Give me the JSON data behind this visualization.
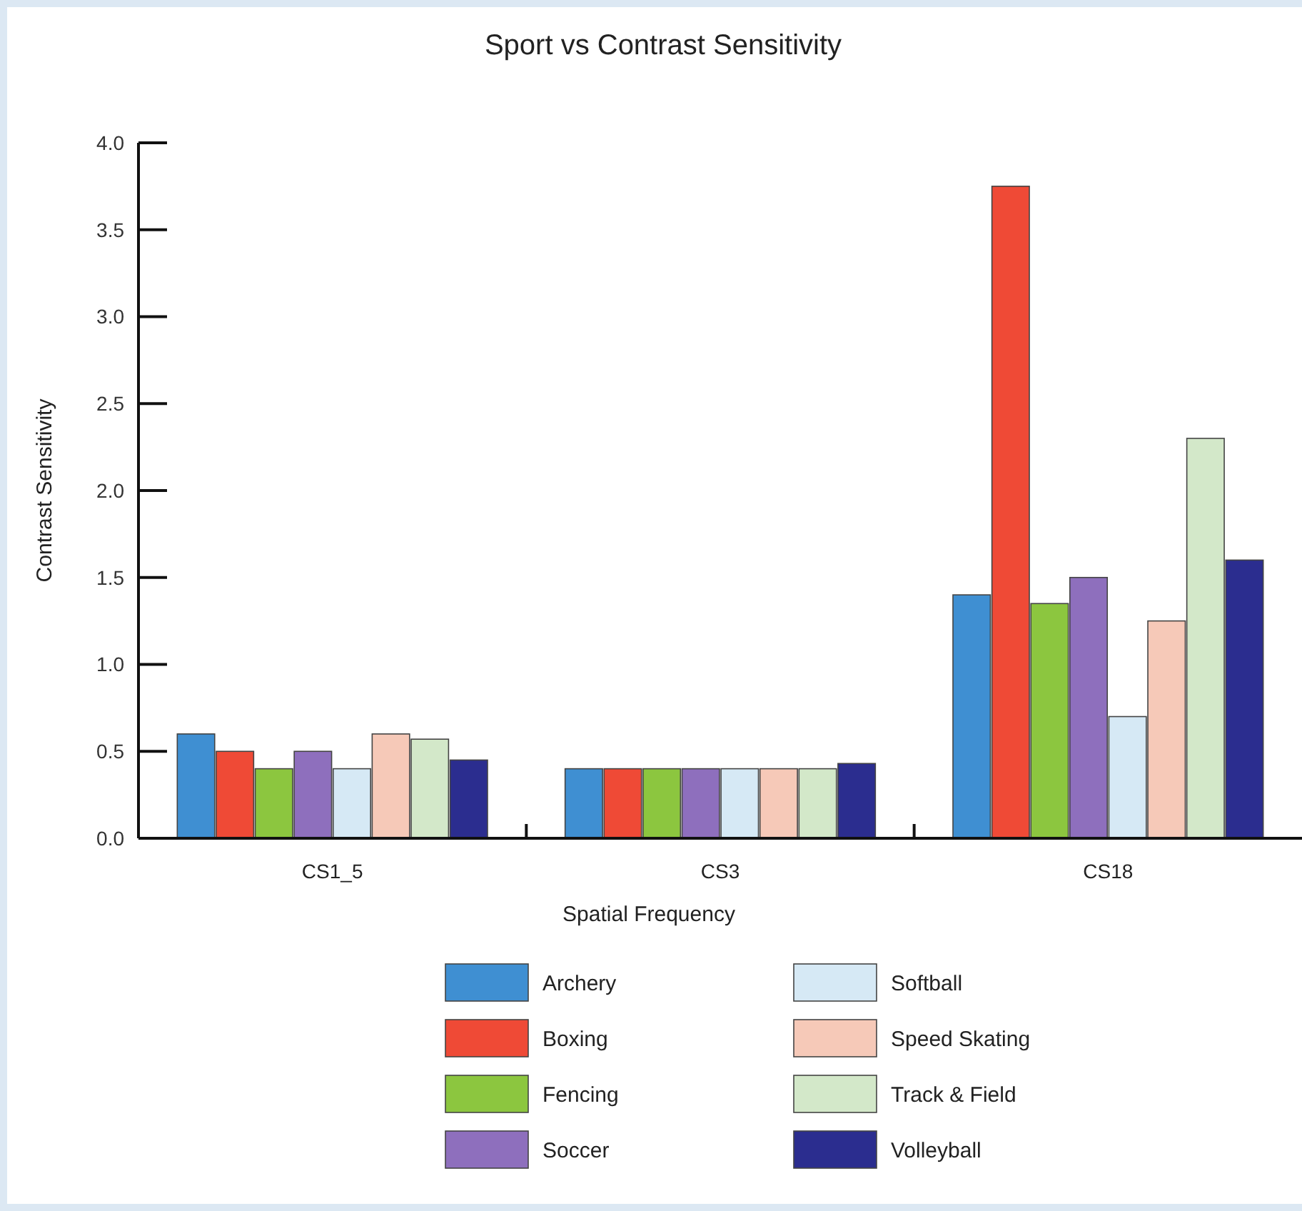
{
  "chart_data": {
    "type": "bar",
    "title": "Sport vs Contrast Sensitivity",
    "xlabel": "Spatial Frequency",
    "ylabel": "Contrast Sensitivity",
    "categories": [
      "CS1_5",
      "CS3",
      "CS18"
    ],
    "series": [
      {
        "name": "Archery",
        "color": "#3f8fd2",
        "values": [
          0.6,
          0.4,
          1.4
        ]
      },
      {
        "name": "Boxing",
        "color": "#ef4a36",
        "values": [
          0.5,
          0.4,
          3.75
        ]
      },
      {
        "name": "Fencing",
        "color": "#8cc63f",
        "values": [
          0.4,
          0.4,
          1.35
        ]
      },
      {
        "name": "Soccer",
        "color": "#8e6fbd",
        "values": [
          0.5,
          0.4,
          1.5
        ]
      },
      {
        "name": "Softball",
        "color": "#d6e9f5",
        "values": [
          0.4,
          0.4,
          0.7
        ]
      },
      {
        "name": "Speed Skating",
        "color": "#f6c9b8",
        "values": [
          0.6,
          0.4,
          1.25
        ]
      },
      {
        "name": "Track & Field",
        "color": "#d3e8c9",
        "values": [
          0.57,
          0.4,
          2.3
        ]
      },
      {
        "name": "Volleyball",
        "color": "#2b2d8f",
        "values": [
          0.45,
          0.43,
          1.6
        ]
      }
    ],
    "ylim": [
      0,
      4
    ],
    "yticks": [
      {
        "value": 0,
        "label": "0.0"
      },
      {
        "value": 0.5,
        "label": "0.5"
      },
      {
        "value": 1,
        "label": "1.0"
      },
      {
        "value": 1.5,
        "label": "1.5"
      },
      {
        "value": 2,
        "label": "2.0"
      },
      {
        "value": 2.5,
        "label": "2.5"
      },
      {
        "value": 3,
        "label": "3.0"
      },
      {
        "value": 3.5,
        "label": "3.5"
      },
      {
        "value": 4,
        "label": "4.0"
      }
    ],
    "grid": false,
    "legend": "bottom"
  }
}
